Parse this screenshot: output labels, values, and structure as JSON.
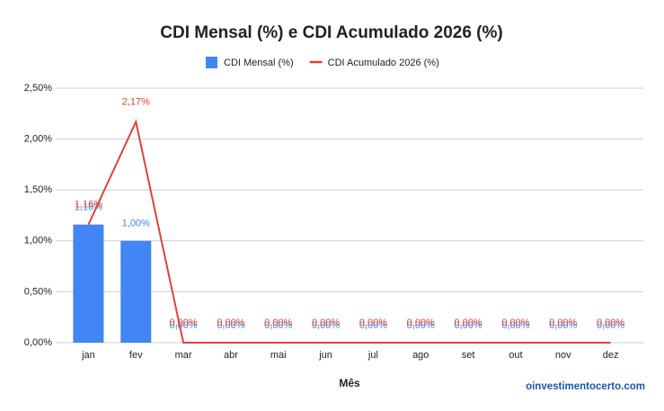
{
  "chart_data": {
    "type": "bar",
    "title": "CDI Mensal (%) e CDI Acumulado 2026 (%)",
    "x_label": "Mês",
    "source": "oinvestimentocerto.com",
    "categories": [
      "jan",
      "fev",
      "mar",
      "abr",
      "mai",
      "jun",
      "jul",
      "ago",
      "set",
      "out",
      "nov",
      "dez"
    ],
    "series": [
      {
        "name": "CDI Mensal (%)",
        "type": "bar",
        "color": "#4285f4",
        "values": [
          1.16,
          1.0,
          0,
          0,
          0,
          0,
          0,
          0,
          0,
          0,
          0,
          0
        ],
        "value_labels": [
          "1,16%",
          "1,00%",
          "0,00%",
          "0,00%",
          "0,00%",
          "0,00%",
          "0,00%",
          "0,00%",
          "0,00%",
          "0,00%",
          "0,00%",
          "0,00%"
        ]
      },
      {
        "name": "CDI Acumulado 2026 (%)",
        "type": "line",
        "color": "#db4437",
        "values": [
          1.16,
          2.17,
          0,
          0,
          0,
          0,
          0,
          0,
          0,
          0,
          0,
          0
        ],
        "value_labels": [
          "1,16%",
          "2,17%",
          "0,00%",
          "0,00%",
          "0,00%",
          "0,00%",
          "0,00%",
          "0,00%",
          "0,00%",
          "0,00%",
          "0,00%",
          "0,00%"
        ]
      }
    ],
    "ylim": [
      0,
      2.5
    ],
    "yticks": [
      {
        "value": 0,
        "label": "0,00%"
      },
      {
        "value": 0.5,
        "label": "0,50%"
      },
      {
        "value": 1,
        "label": "1,00%"
      },
      {
        "value": 1.5,
        "label": "1,50%"
      },
      {
        "value": 2,
        "label": "2,00%"
      },
      {
        "value": 2.5,
        "label": "2,50%"
      }
    ],
    "grid": true,
    "legend": "top"
  }
}
